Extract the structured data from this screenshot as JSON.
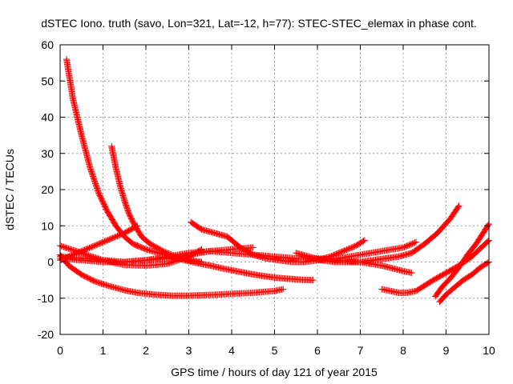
{
  "chart_data": {
    "type": "scatter",
    "title": "dSTEC Iono. truth (savo, Lon=321, Lat=-12, h=77): STEC-STEC_elemax in phase cont.",
    "xlabel": "GPS time / hours of day 121 of year 2015",
    "ylabel": "dSTEC  / TECUs",
    "xlim": [
      0,
      10
    ],
    "ylim": [
      -20,
      60
    ],
    "xticks": [
      "0",
      "1",
      "2",
      "3",
      "4",
      "5",
      "6",
      "7",
      "8",
      "9",
      "10"
    ],
    "yticks": [
      "-20",
      "-10",
      "0",
      "10",
      "20",
      "30",
      "40",
      "50",
      "60"
    ],
    "grid": true,
    "marker": "plus",
    "color": "#ff0000",
    "series": [
      {
        "x": [
          0.15,
          0.3,
          0.5,
          0.7,
          0.9,
          1.1,
          1.3,
          1.5,
          1.7,
          1.8
        ],
        "y": [
          56,
          45,
          35,
          26,
          19,
          14,
          10,
          7,
          5,
          4.5
        ]
      },
      {
        "x": [
          1.8,
          2.0,
          2.3,
          2.6,
          2.9,
          3.2,
          3.5,
          3.8,
          4.1,
          4.4,
          4.7,
          5.0,
          5.3,
          5.6,
          5.9
        ],
        "y": [
          4.5,
          3.5,
          2.5,
          1.5,
          0.5,
          -0.3,
          -1.0,
          -1.8,
          -2.5,
          -3.2,
          -3.8,
          -4.3,
          -4.6,
          -4.9,
          -5.0
        ]
      },
      {
        "x": [
          1.2,
          1.3,
          1.4,
          1.5,
          1.6,
          1.7,
          1.8,
          1.9,
          2.1,
          2.4,
          2.7,
          3.0,
          3.3
        ],
        "y": [
          32,
          26,
          21,
          17,
          13.5,
          11,
          9,
          7,
          5,
          3,
          1.5,
          0.5,
          0.0
        ]
      },
      {
        "x": [
          0.0,
          0.3,
          0.6,
          0.9,
          1.2,
          1.5,
          1.8
        ],
        "y": [
          0.5,
          2,
          3.5,
          5,
          6.5,
          8,
          10
        ]
      },
      {
        "x": [
          0.0,
          0.2,
          0.5,
          0.8,
          1.1,
          1.5,
          1.8,
          2.2,
          2.6,
          3.0,
          3.5,
          4.0,
          4.5,
          5.0,
          5.2
        ],
        "y": [
          2,
          -1,
          -3.5,
          -5.3,
          -6.5,
          -7.8,
          -8.5,
          -9.0,
          -9.3,
          -9.3,
          -9.1,
          -8.8,
          -8.5,
          -8.0,
          -7.5
        ]
      },
      {
        "x": [
          0.0,
          0.5,
          1.0,
          1.5,
          2.0,
          2.5,
          3.0,
          3.3
        ],
        "y": [
          4.5,
          2.5,
          0.5,
          -0.8,
          -1.0,
          -0.5,
          1.5,
          3.5
        ]
      },
      {
        "x": [
          0.0,
          0.5,
          1.0,
          1.5,
          2.0,
          2.5,
          3.0,
          3.5,
          4.0,
          4.5
        ],
        "y": [
          1,
          0.5,
          0,
          0,
          0.5,
          1,
          2,
          3,
          3.5,
          4
        ]
      },
      {
        "x": [
          0.0,
          0.5,
          1.0,
          1.5,
          2.0,
          2.5,
          3.0,
          3.5,
          4.0,
          4.5,
          5.0,
          5.5,
          6.0,
          6.5,
          7.0,
          7.5,
          8.0,
          8.2
        ],
        "y": [
          1.5,
          1.0,
          0.5,
          0,
          0.5,
          1.5,
          2.5,
          3.0,
          2.5,
          2,
          1.5,
          1,
          1,
          0.5,
          0,
          -1.0,
          -2.5,
          -3.0
        ]
      },
      {
        "x": [
          3.05,
          3.3,
          3.6,
          3.9,
          4.2,
          4.5,
          4.8,
          5.1,
          5.4,
          5.7,
          6.0,
          6.3,
          6.6,
          6.9,
          7.1
        ],
        "y": [
          11,
          9,
          8,
          7,
          4,
          2,
          1,
          0.5,
          0,
          0,
          0.5,
          1.5,
          3,
          4.5,
          6
        ]
      },
      {
        "x": [
          5.5,
          5.8,
          6.1,
          6.4,
          6.7,
          7.0,
          7.3,
          7.6,
          7.9,
          8.2,
          8.5,
          8.8,
          9.1,
          9.3
        ],
        "y": [
          2.5,
          1.5,
          0.5,
          0,
          0,
          0,
          0.5,
          1,
          1.5,
          2.5,
          5,
          8,
          12,
          15.5
        ]
      },
      {
        "x": [
          7.5,
          7.7,
          7.9,
          8.1,
          8.3,
          8.5,
          8.7,
          9.0,
          9.3,
          9.6,
          10.0
        ],
        "y": [
          -7.5,
          -8.0,
          -8.5,
          -8.5,
          -8.0,
          -6.5,
          -5,
          -3,
          -1,
          1.5,
          6
        ]
      },
      {
        "x": [
          6.0,
          6.5,
          7.0,
          7.5,
          8.0,
          8.3
        ],
        "y": [
          0.5,
          1.0,
          2,
          3,
          4,
          5.5
        ]
      },
      {
        "x": [
          8.75,
          8.9,
          9.1,
          9.3,
          9.5,
          9.7,
          10.0
        ],
        "y": [
          -9.5,
          -7,
          -4.5,
          -1.5,
          2,
          5,
          10.5
        ]
      },
      {
        "x": [
          8.85,
          9.0,
          9.2,
          9.4,
          9.6,
          9.8,
          10.0
        ],
        "y": [
          -11,
          -9,
          -7,
          -5,
          -3.5,
          -1.5,
          0
        ]
      }
    ]
  }
}
